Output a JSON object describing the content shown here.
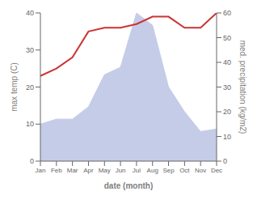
{
  "chart_data": {
    "type": "line",
    "xlabel": "date (month)",
    "ylabel": "max temp (C)",
    "y2label": "med. precipitation (kg/m2)",
    "categories": [
      "Jan",
      "Feb",
      "Mar",
      "Apr",
      "May",
      "Jun",
      "Jul",
      "Aug",
      "Sep",
      "Oct",
      "Nov",
      "Dec"
    ],
    "series": [
      {
        "type": "area",
        "axis": "y2",
        "color": "#c5cce8",
        "values": [
          15,
          17,
          17,
          22,
          35,
          38,
          60,
          55,
          30,
          20,
          12,
          13
        ]
      },
      {
        "type": "line",
        "color": "#cc3333",
        "values": [
          23,
          25,
          28,
          35,
          36,
          36,
          37,
          39,
          39,
          36,
          36,
          40
        ]
      }
    ],
    "ylim": [
      0,
      40
    ],
    "yticks": [
      0,
      10,
      20,
      30,
      40
    ],
    "y2lim": [
      0,
      60
    ],
    "y2ticks": [
      0,
      10,
      20,
      30,
      40,
      50,
      60
    ],
    "grid": false
  }
}
